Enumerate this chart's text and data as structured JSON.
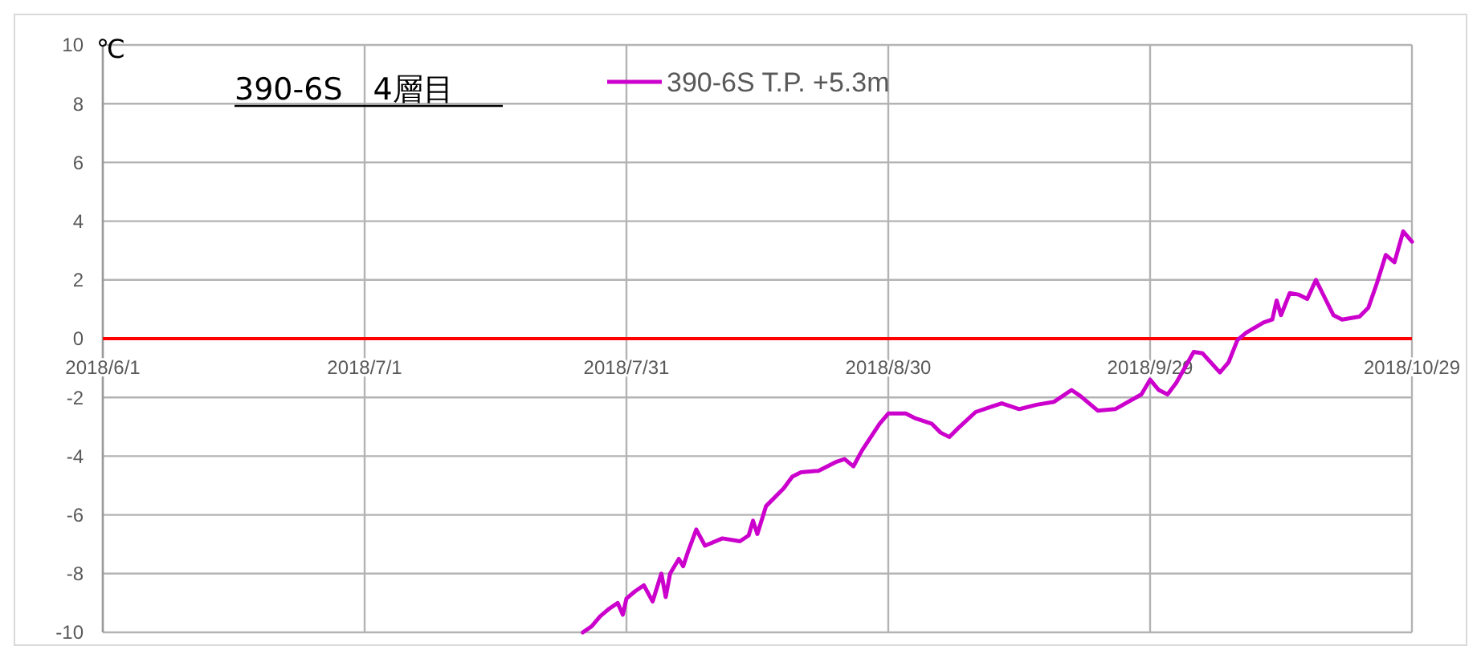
{
  "chart_data": {
    "type": "line",
    "title": "390-6S　4層目",
    "ylabel": "℃",
    "x": [
      "2018-07-26",
      "2018-07-27",
      "2018-07-28",
      "2018-07-29",
      "2018-07-30",
      "2018-07-30T14:00",
      "2018-07-31",
      "2018-08-01",
      "2018-08-02",
      "2018-08-03",
      "2018-08-04",
      "2018-08-04T12:00",
      "2018-08-05",
      "2018-08-06",
      "2018-08-06T12:00",
      "2018-08-07",
      "2018-08-08",
      "2018-08-09",
      "2018-08-11",
      "2018-08-13",
      "2018-08-14",
      "2018-08-14T12:00",
      "2018-08-15",
      "2018-08-16",
      "2018-08-18",
      "2018-08-19",
      "2018-08-20",
      "2018-08-22",
      "2018-08-24",
      "2018-08-25",
      "2018-08-26",
      "2018-08-27",
      "2018-08-29",
      "2018-08-30",
      "2018-09-01",
      "2018-09-02",
      "2018-09-04",
      "2018-09-05",
      "2018-09-06",
      "2018-09-07",
      "2018-09-09",
      "2018-09-11",
      "2018-09-12",
      "2018-09-14",
      "2018-09-16",
      "2018-09-18",
      "2018-09-20",
      "2018-09-21",
      "2018-09-23",
      "2018-09-25",
      "2018-09-28",
      "2018-09-29",
      "2018-09-30",
      "2018-10-01",
      "2018-10-02",
      "2018-10-04",
      "2018-10-05",
      "2018-10-07",
      "2018-10-08",
      "2018-10-09",
      "2018-10-10",
      "2018-10-12",
      "2018-10-13",
      "2018-10-13T12:00",
      "2018-10-14",
      "2018-10-15",
      "2018-10-16",
      "2018-10-17",
      "2018-10-18",
      "2018-10-19",
      "2018-10-20",
      "2018-10-21",
      "2018-10-23",
      "2018-10-24",
      "2018-10-25",
      "2018-10-26",
      "2018-10-27",
      "2018-10-28",
      "2018-10-29"
    ],
    "series": [
      {
        "name": "390-6S T.P. +5.3m",
        "color": "#cc00cc",
        "values": [
          -10.0,
          -9.8,
          -9.45,
          -9.2,
          -9.0,
          -9.4,
          -8.85,
          -8.6,
          -8.4,
          -8.95,
          -8.0,
          -8.8,
          -8.0,
          -7.5,
          -7.75,
          -7.3,
          -6.5,
          -7.05,
          -6.8,
          -6.9,
          -6.7,
          -6.2,
          -6.65,
          -5.7,
          -5.1,
          -4.7,
          -4.55,
          -4.5,
          -4.2,
          -4.1,
          -4.35,
          -3.8,
          -2.9,
          -2.55,
          -2.55,
          -2.7,
          -2.9,
          -3.2,
          -3.35,
          -3.05,
          -2.5,
          -2.3,
          -2.2,
          -2.4,
          -2.25,
          -2.15,
          -1.75,
          -1.95,
          -2.45,
          -2.4,
          -1.9,
          -1.4,
          -1.75,
          -1.9,
          -1.5,
          -0.45,
          -0.5,
          -1.15,
          -0.8,
          -0.05,
          0.2,
          0.55,
          0.65,
          1.3,
          0.8,
          1.55,
          1.5,
          1.35,
          2.0,
          1.4,
          0.8,
          0.65,
          0.75,
          1.05,
          1.9,
          2.85,
          2.6,
          3.65,
          3.3
        ]
      }
    ],
    "xlim": [
      "2018-06-01",
      "2018-10-29"
    ],
    "xticks": [
      {
        "value": "2018-06-01",
        "label": "2018/6/1"
      },
      {
        "value": "2018-07-01",
        "label": "2018/7/1"
      },
      {
        "value": "2018-07-31",
        "label": "2018/7/31"
      },
      {
        "value": "2018-08-30",
        "label": "2018/8/30"
      },
      {
        "value": "2018-09-29",
        "label": "2018/9/29"
      },
      {
        "value": "2018-10-29",
        "label": "2018/10/29"
      }
    ],
    "ylim": [
      -10,
      10
    ],
    "yticks": [
      -10,
      -8,
      -6,
      -4,
      -2,
      0,
      2,
      4,
      6,
      8,
      10
    ],
    "grid": true,
    "legend": "top",
    "marker": "none",
    "line_style": "solid"
  }
}
